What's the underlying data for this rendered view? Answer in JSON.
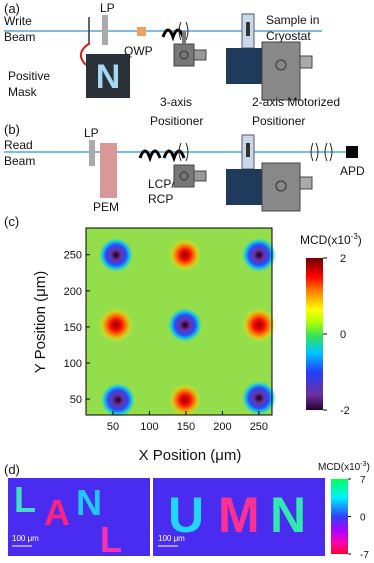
{
  "panel_a": {
    "label": "(a)",
    "beam": [
      "Write",
      "Beam"
    ],
    "lp": "LP",
    "qwp": "QWP",
    "mask": [
      "Positive",
      "Mask"
    ],
    "mask_letter": "N",
    "positioner": [
      "3-axis",
      "Positioner"
    ],
    "sample": [
      "Sample in",
      "Cryostat"
    ],
    "motor": [
      "2-axis Motorized",
      "Positioner"
    ]
  },
  "panel_b": {
    "label": "(b)",
    "beam": [
      "Read",
      "Beam"
    ],
    "lp": "LP",
    "pem": "PEM",
    "pol": [
      "LCP/",
      "RCP"
    ],
    "detector": "APD"
  },
  "chart_data": {
    "type": "heatmap",
    "panel_label": "(c)",
    "xlabel": "X Position (μm)",
    "ylabel": "Y Position (μm)",
    "xlim": [
      13,
      268
    ],
    "ylim": [
      28,
      287
    ],
    "xticks": [
      50,
      100,
      150,
      200,
      250
    ],
    "yticks": [
      50,
      100,
      150,
      200,
      250
    ],
    "colorbar_label": [
      "MCD(x10",
      "-3",
      ")"
    ],
    "clim": [
      -2,
      2
    ],
    "cticks": [
      -2,
      0,
      2
    ]
  },
  "panel_d": {
    "label": "(d)",
    "colorbar_label": [
      "MCD(x10",
      "-3",
      ")"
    ],
    "clim": [
      -7,
      7
    ],
    "cticks": [
      -7,
      0,
      7
    ],
    "left_letters": [
      "L",
      "A",
      "N",
      "L"
    ],
    "right_letters": [
      "U",
      "M",
      "N"
    ],
    "scale_bar": "100 μm"
  }
}
